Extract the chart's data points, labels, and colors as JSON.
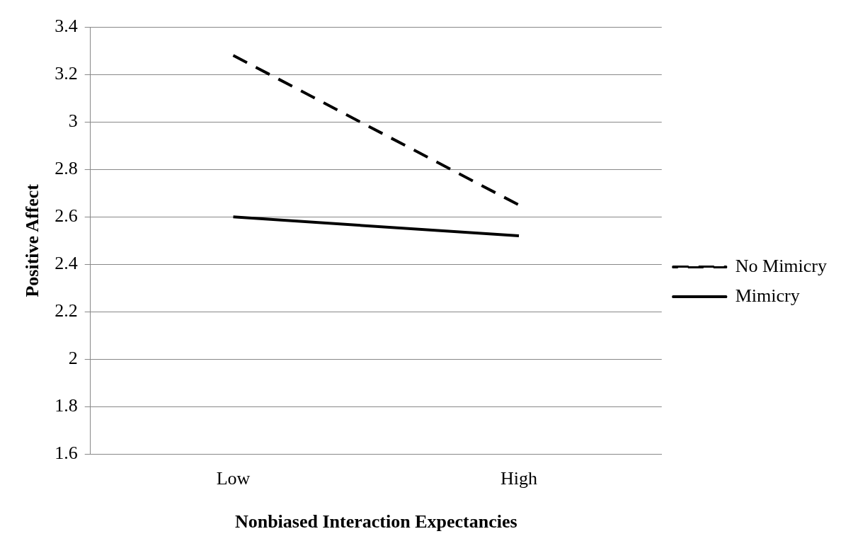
{
  "chart_data": {
    "type": "line",
    "xlabel": "Nonbiased Interaction Expectancies",
    "ylabel": "Positive Affect",
    "categories": [
      "Low",
      "High"
    ],
    "series": [
      {
        "name": "No Mimicry",
        "color": "#000000",
        "line_style": "dashed",
        "values": [
          3.28,
          2.65
        ]
      },
      {
        "name": "Mimicry",
        "color": "#000000",
        "line_style": "solid",
        "values": [
          2.6,
          2.52
        ]
      }
    ],
    "ylim": [
      1.6,
      3.4
    ],
    "yticks": [
      1.6,
      1.8,
      2,
      2.2,
      2.4,
      2.6,
      2.8,
      3,
      3.2,
      3.4
    ],
    "grid": "y",
    "legend": "right"
  }
}
